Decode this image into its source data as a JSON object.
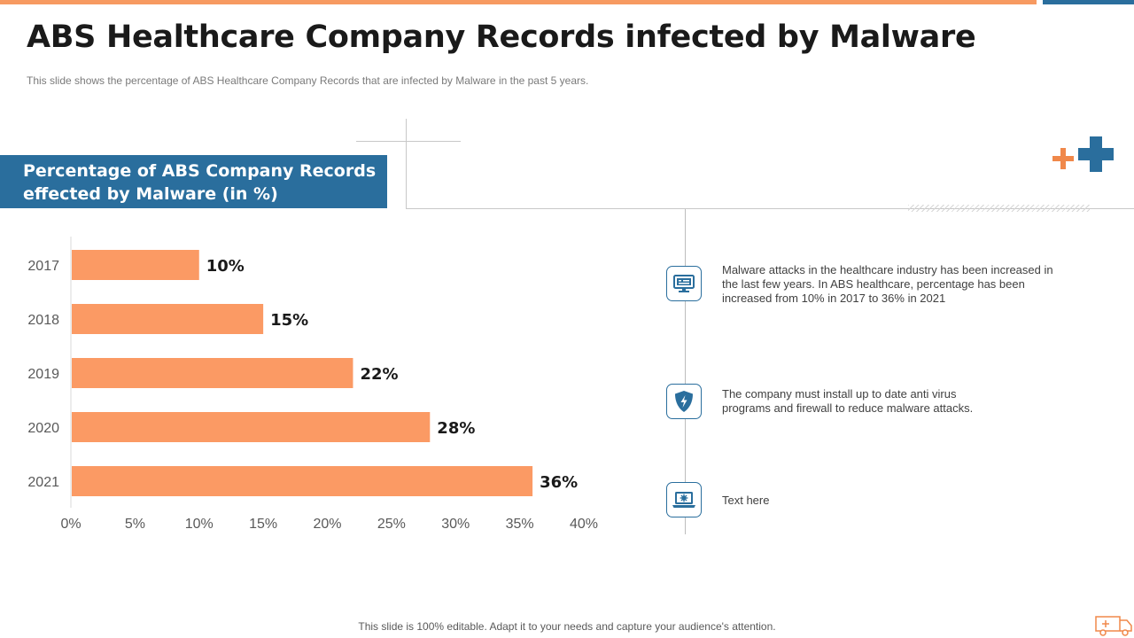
{
  "slide": {
    "title": "ABS Healthcare Company Records infected by Malware",
    "subtitle": "This slide shows the percentage of ABS Healthcare Company Records that are infected by Malware in the past 5 years.",
    "footer": "This slide is 100% editable. Adapt it to your needs and capture your audience's attention."
  },
  "colors": {
    "accent_orange": "#f79a61",
    "accent_blue": "#2a6e9d",
    "bar": "#fb9a64"
  },
  "chart_header": {
    "line1": "Percentage of ABS Company Records",
    "line2": "effected by Malware (in %)"
  },
  "chart_data": {
    "type": "bar",
    "orientation": "horizontal",
    "title": "Percentage of ABS Company Records effected by Malware (in %)",
    "categories": [
      "2017",
      "2018",
      "2019",
      "2020",
      "2021"
    ],
    "values": [
      10,
      15,
      22,
      28,
      36
    ],
    "data_labels": [
      "10%",
      "15%",
      "22%",
      "28%",
      "36%"
    ],
    "xlim": [
      0,
      40
    ],
    "x_ticks": [
      0,
      5,
      10,
      15,
      20,
      25,
      30,
      35,
      40
    ],
    "x_tick_labels": [
      "0%",
      "5%",
      "10%",
      "15%",
      "20%",
      "25%",
      "30%",
      "35%",
      "40%"
    ],
    "xlabel": "",
    "ylabel": "",
    "grid": false,
    "legend": "none"
  },
  "points": [
    {
      "icon": "monitor-icon",
      "text": "Malware attacks in the healthcare industry has been increased in the last few years. In ABS healthcare, percentage has been increased from 10% in 2017 to 36% in 2021"
    },
    {
      "icon": "shield-lightning-icon",
      "text": "The company must install up to date anti virus programs and firewall to reduce malware attacks."
    },
    {
      "icon": "laptop-virus-icon",
      "text": "Text here"
    }
  ]
}
